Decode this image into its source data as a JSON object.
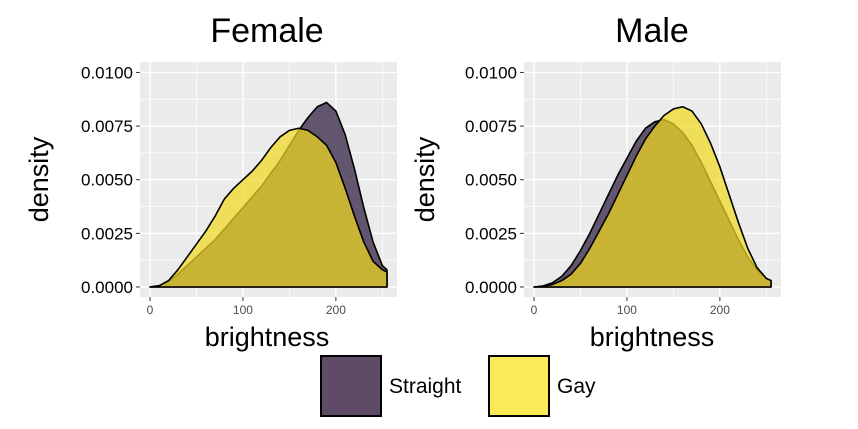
{
  "chart_data": [
    {
      "type": "area",
      "title": "Female",
      "xlabel": "brightness",
      "ylabel": "density",
      "xlim": [
        0,
        255
      ],
      "ylim": [
        0,
        0.0103
      ],
      "x_ticks": [
        0,
        100,
        200
      ],
      "y_ticks": [
        0,
        0.0025,
        0.005,
        0.0075,
        0.01
      ],
      "x_tick_labels": [
        "0",
        "100",
        "200"
      ],
      "y_tick_labels": [
        "0.0000",
        "0.0025",
        "0.0050",
        "0.0075",
        "0.0100"
      ],
      "grid": true,
      "series": [
        {
          "name": "Straight",
          "color": "#3b2a4a",
          "x": [
            0,
            10,
            20,
            30,
            40,
            50,
            60,
            70,
            80,
            90,
            100,
            110,
            120,
            130,
            140,
            150,
            160,
            170,
            180,
            190,
            200,
            210,
            220,
            230,
            240,
            250,
            255
          ],
          "y": [
            0.0,
            6e-05,
            0.00025,
            0.0006,
            0.001,
            0.0014,
            0.0018,
            0.0022,
            0.0027,
            0.0032,
            0.0037,
            0.0042,
            0.0047,
            0.0053,
            0.0059,
            0.0066,
            0.0073,
            0.0079,
            0.0084,
            0.0086,
            0.0082,
            0.0071,
            0.0055,
            0.0037,
            0.0021,
            0.001,
            0.0008
          ]
        },
        {
          "name": "Gay",
          "color": "#f0d820",
          "x": [
            0,
            10,
            20,
            30,
            40,
            50,
            60,
            70,
            80,
            90,
            100,
            110,
            120,
            130,
            140,
            150,
            160,
            170,
            180,
            190,
            200,
            210,
            220,
            230,
            240,
            250,
            255
          ],
          "y": [
            0.0,
            6e-05,
            0.0003,
            0.0008,
            0.0014,
            0.002,
            0.0026,
            0.0033,
            0.0041,
            0.0046,
            0.005,
            0.0054,
            0.0059,
            0.0065,
            0.007,
            0.0073,
            0.0074,
            0.0073,
            0.007,
            0.0066,
            0.0058,
            0.0046,
            0.0033,
            0.0021,
            0.0012,
            0.0008,
            0.0007
          ]
        }
      ]
    },
    {
      "type": "area",
      "title": "Male",
      "xlabel": "brightness",
      "ylabel": "density",
      "xlim": [
        0,
        255
      ],
      "ylim": [
        0,
        0.0103
      ],
      "x_ticks": [
        0,
        100,
        200
      ],
      "y_ticks": [
        0,
        0.0025,
        0.005,
        0.0075,
        0.01
      ],
      "x_tick_labels": [
        "0",
        "100",
        "200"
      ],
      "y_tick_labels": [
        "0.0000",
        "0.0025",
        "0.0050",
        "0.0075",
        "0.0100"
      ],
      "grid": true,
      "series": [
        {
          "name": "Straight",
          "color": "#3b2a4a",
          "x": [
            0,
            10,
            20,
            30,
            40,
            50,
            60,
            70,
            80,
            90,
            100,
            110,
            120,
            130,
            140,
            150,
            160,
            170,
            180,
            190,
            200,
            210,
            220,
            230,
            240,
            250,
            255
          ],
          "y": [
            0.0,
            5e-05,
            0.0002,
            0.0005,
            0.001,
            0.0017,
            0.0025,
            0.0034,
            0.0043,
            0.0052,
            0.006,
            0.0068,
            0.0074,
            0.0077,
            0.0078,
            0.0076,
            0.0072,
            0.0066,
            0.0058,
            0.0049,
            0.004,
            0.0031,
            0.0022,
            0.0014,
            0.0008,
            0.0004,
            0.0003
          ]
        },
        {
          "name": "Gay",
          "color": "#f0d820",
          "x": [
            0,
            10,
            20,
            30,
            40,
            50,
            60,
            70,
            80,
            90,
            100,
            110,
            120,
            130,
            140,
            150,
            160,
            170,
            180,
            190,
            200,
            210,
            220,
            230,
            240,
            250,
            255
          ],
          "y": [
            0.0,
            3e-05,
            0.00012,
            0.0003,
            0.0006,
            0.0011,
            0.0018,
            0.0026,
            0.0034,
            0.0043,
            0.0052,
            0.0061,
            0.0069,
            0.0075,
            0.008,
            0.0083,
            0.0084,
            0.0082,
            0.0076,
            0.0067,
            0.0056,
            0.0043,
            0.003,
            0.0018,
            0.0009,
            0.0004,
            0.0003
          ]
        }
      ]
    }
  ],
  "legend": {
    "position": "bottom",
    "items": [
      {
        "label": "Straight",
        "color": "#3b2a4a"
      },
      {
        "label": "Gay",
        "color": "#f0d820"
      }
    ]
  }
}
